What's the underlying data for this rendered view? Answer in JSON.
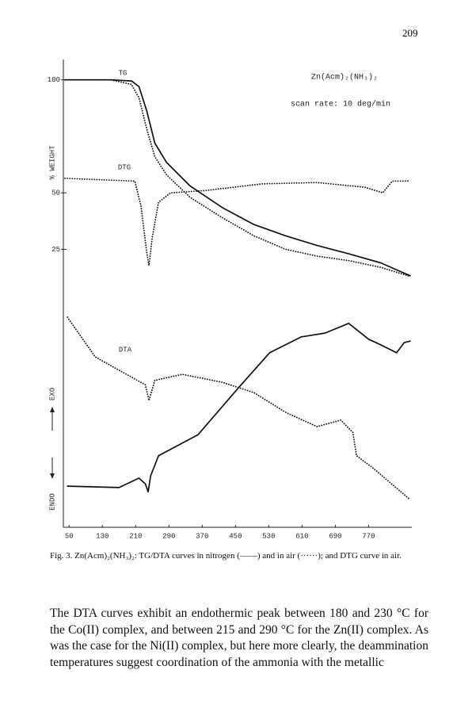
{
  "page_number": "209",
  "chart_data": {
    "type": "line",
    "xlim": [
      40,
      870
    ],
    "xticks": [
      50,
      130,
      210,
      290,
      370,
      450,
      530,
      610,
      690,
      770
    ],
    "ylim": [
      -98,
      109
    ],
    "yticks": [
      25,
      50,
      100
    ],
    "y2lim": [
      0,
      100
    ],
    "y_label": "% WEIGHT",
    "exo_label": "EXO",
    "endo_label": "ENDO",
    "annotations": [
      "TG",
      "DTG",
      "DTA",
      "Zn(Acm)₂(NH₃)₂",
      "scan rate: 10 deg/min"
    ],
    "series": [
      {
        "style": "solid",
        "color": "#111111",
        "x": [
          40,
          150,
          200,
          218,
          237,
          256,
          284,
          341,
          418,
          494,
          570,
          646,
          722,
          799,
          870
        ],
        "values": [
          100,
          100,
          99.5,
          97,
          86,
          72,
          63.5,
          53,
          43.5,
          36,
          31,
          26.7,
          23,
          19,
          13.3
        ]
      },
      {
        "style": "dotted",
        "color": "#111111",
        "x": [
          40,
          150,
          200,
          218,
          237,
          256,
          284,
          341,
          418,
          494,
          570,
          646,
          722,
          799,
          870
        ],
        "values": [
          100,
          100,
          98,
          92,
          78,
          66,
          58,
          48,
          39,
          31,
          25,
          22,
          20,
          17,
          13
        ]
      },
      {
        "style": "dotted",
        "color": "#111111",
        "axis": "y2",
        "x": [
          40,
          208,
          223,
          237,
          242,
          250,
          265,
          294,
          380,
          513,
          646,
          760,
          804,
          827,
          870
        ],
        "values": [
          74.6,
          74,
          68.6,
          58.5,
          56,
          62,
          69.5,
          71.5,
          72,
          73.4,
          73.7,
          72.7,
          71.5,
          74,
          74
        ]
      },
      {
        "style": "solid",
        "color": "#111111",
        "axis": "y2",
        "x": [
          46,
          170,
          218,
          233,
          240,
          246,
          265,
          360,
          456,
          532,
          608,
          665,
          722,
          770,
          799,
          837,
          856,
          870
        ],
        "values": [
          8.8,
          8.5,
          10.5,
          9.3,
          7.6,
          11,
          15.3,
          19.8,
          29.7,
          37.3,
          40.7,
          41.5,
          43.6,
          40.2,
          39,
          37.3,
          39.5,
          39.8
        ]
      },
      {
        "style": "dotted",
        "color": "#111111",
        "axis": "y2",
        "x": [
          46,
          113,
          208,
          233,
          242,
          256,
          322,
          418,
          494,
          570,
          646,
          703,
          732,
          741,
          780,
          870
        ],
        "values": [
          44.9,
          36.4,
          31.7,
          30.5,
          27.1,
          31.4,
          32.7,
          31,
          28.8,
          24.6,
          21.5,
          22.9,
          20.3,
          15.3,
          12.7,
          5.9
        ]
      }
    ]
  },
  "caption": "Fig. 3. Zn(Acm)₂(NH₃)₂: TG/DTA curves in nitrogen (——) and in air (······); and DTG curve in air.",
  "body": "The DTA curves exhibit an endothermic peak between 180 and 230 °C for the Co(II) complex, and between 215 and 290 °C for the Zn(II) complex. As was the case for the Ni(II) complex, but here more clearly, the deammination temperatures suggest coordination of the ammonia with the metallic"
}
